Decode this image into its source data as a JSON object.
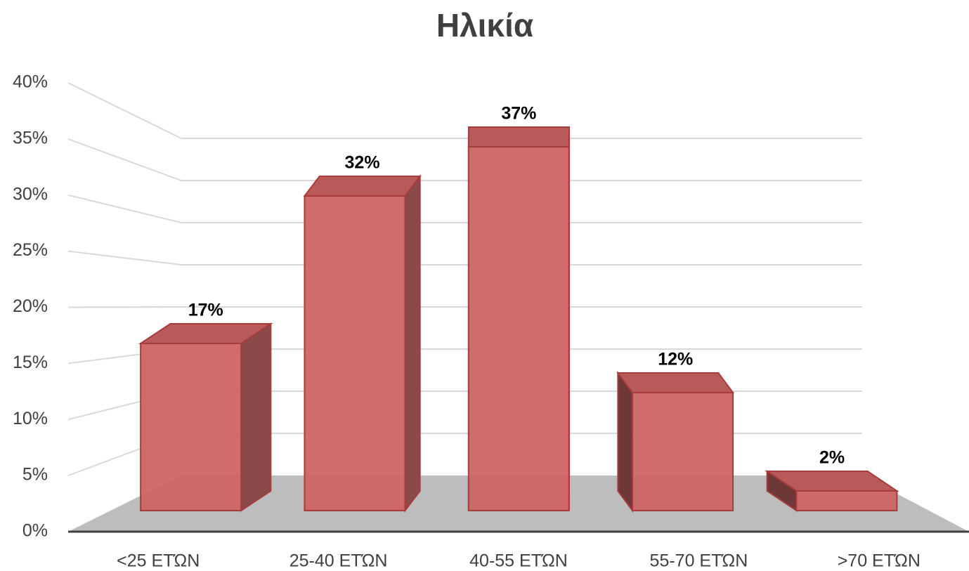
{
  "chart_data": {
    "type": "bar3d",
    "title": "Ηλικία",
    "categories": [
      "<25 ΕΤΏΝ",
      "25-40 ΕΤΏΝ",
      "40-55 ΕΤΏΝ",
      "55-70 ΕΤΏΝ",
      ">70 ΕΤΏΝ"
    ],
    "values": [
      17,
      32,
      37,
      12,
      2
    ],
    "value_labels": [
      "17%",
      "32%",
      "37%",
      "12%",
      "2%"
    ],
    "color": "#cd6464",
    "ylim": [
      0,
      40
    ],
    "yticks": [
      {
        "value": 0,
        "label": "0%"
      },
      {
        "value": 5,
        "label": "5%"
      },
      {
        "value": 10,
        "label": "10%"
      },
      {
        "value": 15,
        "label": "15%"
      },
      {
        "value": 20,
        "label": "20%"
      },
      {
        "value": 25,
        "label": "25%"
      },
      {
        "value": 30,
        "label": "30%"
      },
      {
        "value": 35,
        "label": "35%"
      },
      {
        "value": 40,
        "label": "40%"
      }
    ],
    "grid": true
  }
}
